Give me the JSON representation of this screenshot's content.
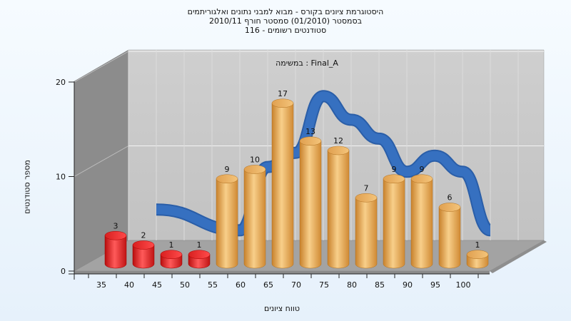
{
  "title_lines": [
    "היסטוגרמת ציונים בקורס - מבוא למבני נתונים ואלגוריתמים",
    "בסמסטר  (01/2010)  סמסטר חורף 2010/11",
    "סטודנטים רשומים - 116"
  ],
  "task_label": "Final_A : במשימה",
  "colors": {
    "fail_bar": "#e02020",
    "pass_bar": "#e8a84e",
    "curve": "#3670c0",
    "back_wall": "#c8c8c8",
    "left_wall": "#8c8c8c",
    "floor": "#a0a0a0"
  },
  "chart_data": {
    "type": "bar",
    "title": "היסטוגרמת ציונים בקורס - מבוא למבני נתונים ואלגוריתמים",
    "xlabel": "טווח ציונים",
    "ylabel": "מספר סטודנטים",
    "ylim": [
      0,
      20
    ],
    "yticks": [
      0,
      10,
      20
    ],
    "categories": [
      "35",
      "40",
      "45",
      "50",
      "55",
      "60",
      "65",
      "70",
      "75",
      "80",
      "85",
      "90",
      "95",
      "100"
    ],
    "values": [
      3,
      2,
      1,
      1,
      9,
      10,
      17,
      13,
      12,
      7,
      9,
      9,
      6,
      1
    ],
    "fail_threshold": 55,
    "curve": [
      {
        "x": 40,
        "y": 5.0
      },
      {
        "x": 55,
        "y": 2.8
      },
      {
        "x": 60,
        "y": 9.5
      },
      {
        "x": 65,
        "y": 11.0
      },
      {
        "x": 70,
        "y": 17.0
      },
      {
        "x": 75,
        "y": 14.5
      },
      {
        "x": 80,
        "y": 12.5
      },
      {
        "x": 85,
        "y": 9.0
      },
      {
        "x": 90,
        "y": 10.7
      },
      {
        "x": 95,
        "y": 9.0
      },
      {
        "x": 100,
        "y": 2.8
      }
    ],
    "grid": true
  }
}
